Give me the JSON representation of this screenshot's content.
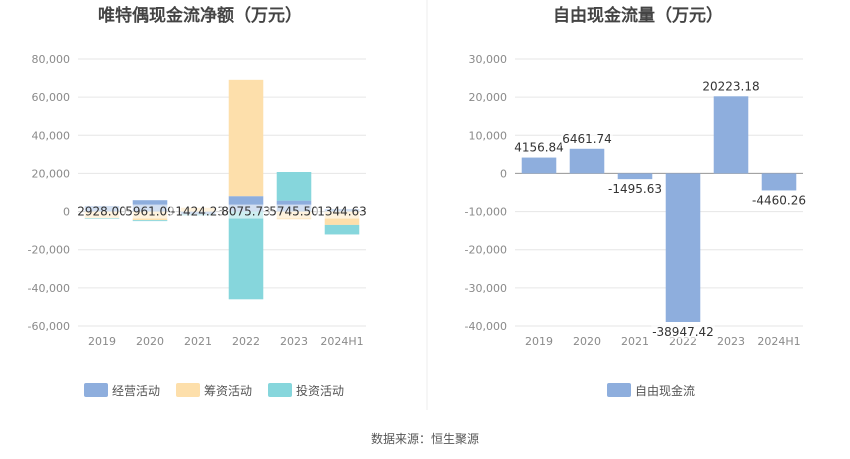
{
  "source_label": "数据来源：恒生聚源",
  "chart_data": [
    {
      "type": "bar",
      "stacked": true,
      "title": "唯特偶现金流净额（万元）",
      "categories": [
        "2019",
        "2020",
        "2021",
        "2022",
        "2023",
        "2024H1"
      ],
      "ylim": [
        -60000,
        80000
      ],
      "yticks": [
        80000,
        60000,
        40000,
        20000,
        0,
        -20000,
        -40000,
        -60000
      ],
      "ytick_labels": [
        "80,000",
        "60,000",
        "40,000",
        "20,000",
        "0",
        "-20,000",
        "-40,000",
        "-60,000"
      ],
      "legend_position": "bottom",
      "series": [
        {
          "name": "经营活动",
          "color": "#8eaedd",
          "values": [
            2928.0,
            5961.09,
            -1424.23,
            8075.73,
            5745.5,
            1344.63
          ]
        },
        {
          "name": "筹资活动",
          "color": "#fddfab",
          "values": [
            -3500,
            -4500,
            2000,
            61000,
            -4000,
            -7000
          ]
        },
        {
          "name": "投资活动",
          "color": "#86d6dc",
          "values": [
            -400,
            -500,
            -600,
            -46000,
            15000,
            -5000
          ]
        }
      ],
      "data_labels": [
        "2928.00",
        "5961.09",
        "-1424.23",
        "8075.73",
        "5745.50",
        "1344.63"
      ]
    },
    {
      "type": "bar",
      "title": "自由现金流量（万元）",
      "categories": [
        "2019",
        "2020",
        "2021",
        "2022",
        "2023",
        "2024H1"
      ],
      "ylim": [
        -40000,
        30000
      ],
      "yticks": [
        30000,
        20000,
        10000,
        0,
        -10000,
        -20000,
        -30000,
        -40000
      ],
      "ytick_labels": [
        "30,000",
        "20,000",
        "10,000",
        "0",
        "-10,000",
        "-20,000",
        "-30,000",
        "-40,000"
      ],
      "legend_position": "bottom",
      "series": [
        {
          "name": "自由现金流",
          "color": "#8eaedd",
          "values": [
            4156.84,
            6461.74,
            -1495.63,
            -38947.42,
            20223.18,
            -4460.26
          ]
        }
      ],
      "data_labels": [
        "4156.84",
        "6461.74",
        "-1495.63",
        "-38947.42",
        "20223.18",
        "-4460.26"
      ]
    }
  ]
}
